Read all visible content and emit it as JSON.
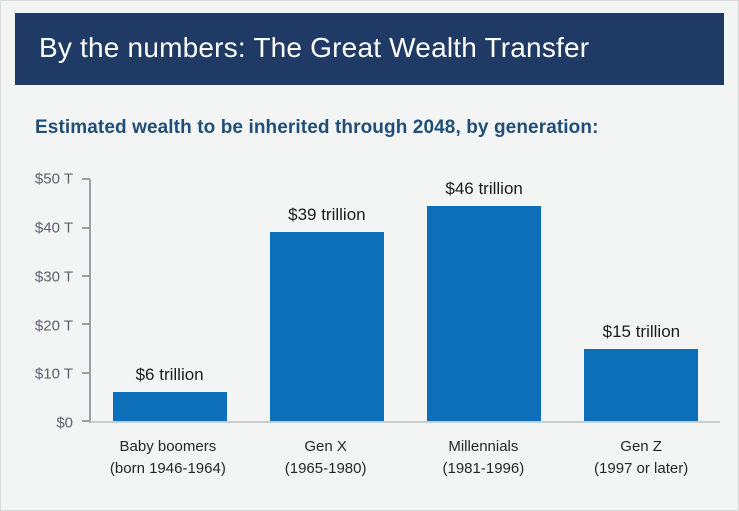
{
  "header": {
    "title": "By the numbers: The Great Wealth Transfer"
  },
  "subtitle": "Estimated wealth to be inherited through 2048, by generation:",
  "colors": {
    "header_bg": "#203a66",
    "subtitle_text": "#1f4e79",
    "bar": "#0d6fb8",
    "axis": "#9aa0a6"
  },
  "chart_data": {
    "type": "bar",
    "title": "By the numbers: The Great Wealth Transfer",
    "subtitle": "Estimated wealth to be inherited through 2048, by generation:",
    "categories": [
      [
        "Baby boomers",
        "(born 1946-1964)"
      ],
      [
        "Gen X",
        "(1965-1980)"
      ],
      [
        "Millennials",
        "(1981-1996)"
      ],
      [
        "Gen Z",
        "(1997 or later)"
      ]
    ],
    "values": [
      6,
      39,
      46,
      15
    ],
    "value_labels": [
      "$6 trillion",
      "$39 trillion",
      "$46 trillion",
      "$15 trillion"
    ],
    "xlabel": "",
    "ylabel": "",
    "ylim": [
      0,
      50
    ],
    "y_ticks": [
      {
        "value": 50,
        "label": "$50 T"
      },
      {
        "value": 40,
        "label": "$40 T"
      },
      {
        "value": 30,
        "label": "$30 T"
      },
      {
        "value": 20,
        "label": "$20 T"
      },
      {
        "value": 10,
        "label": "$10 T"
      },
      {
        "value": 0,
        "label": "$0"
      }
    ],
    "bar_color": "#0d6fb8",
    "grid": false,
    "legend": null
  }
}
